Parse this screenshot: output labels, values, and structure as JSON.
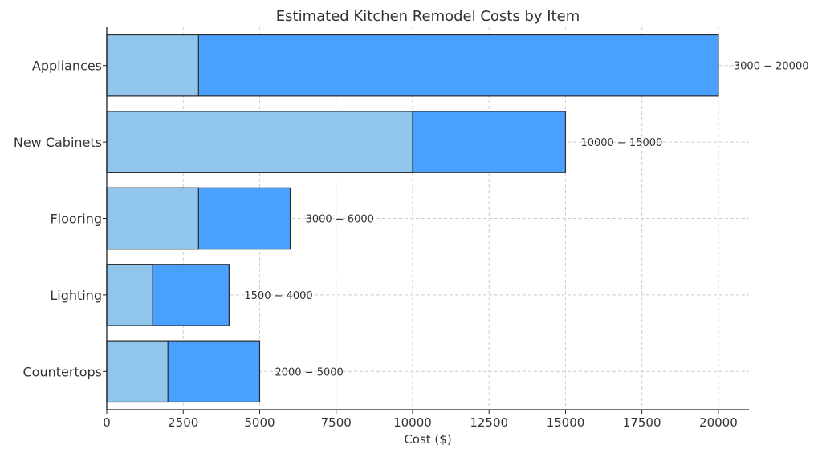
{
  "chart_data": {
    "type": "bar",
    "orientation": "horizontal",
    "stacked": "overlay",
    "title": "Estimated Kitchen Remodel Costs by Item",
    "xlabel": "Cost ($)",
    "ylabel": "",
    "xlim": [
      0,
      21000
    ],
    "xticks": [
      0,
      2500,
      5000,
      7500,
      10000,
      12500,
      15000,
      17500,
      20000
    ],
    "grid": true,
    "categories": [
      "Appliances",
      "New Cabinets",
      "Flooring",
      "Lighting",
      "Countertops"
    ],
    "series": [
      {
        "name": "",
        "values": [
          3000,
          10000,
          3000,
          1500,
          2000
        ],
        "color": "#90c6ec"
      },
      {
        "name": "",
        "values": [
          20000,
          15000,
          6000,
          4000,
          5000
        ],
        "color": "#4aa0ff"
      }
    ],
    "data_labels": [
      "3000 − 20000",
      "10000 − 15000",
      "3000 − 6000",
      "1500 − 4000",
      "2000 − 5000"
    ]
  }
}
